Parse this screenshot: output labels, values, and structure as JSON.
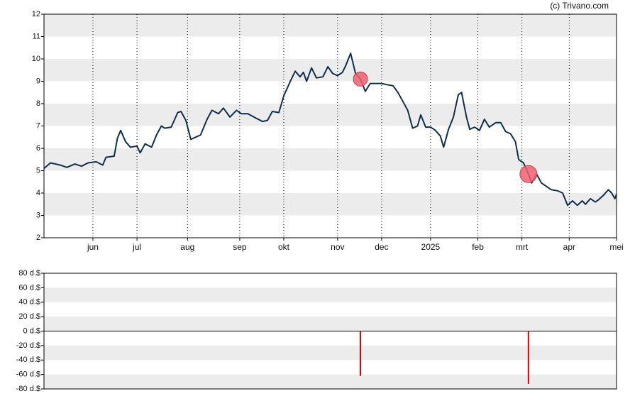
{
  "source": "(c) Trivano.com",
  "chart_data": [
    {
      "type": "line",
      "color": "#0f2f4f",
      "grid": true,
      "x": [
        0,
        4,
        10,
        14,
        19,
        23,
        27,
        32,
        36,
        38,
        43,
        45,
        47,
        50,
        53,
        57,
        59,
        62,
        66,
        69,
        72,
        74,
        78,
        82,
        84,
        87,
        90,
        93,
        96,
        100,
        103,
        107,
        110,
        114,
        118,
        121,
        125,
        130,
        134,
        137,
        140,
        144,
        147,
        151,
        154,
        157,
        159,
        161,
        164,
        167,
        171,
        174,
        177,
        180,
        183,
        185,
        188,
        191,
        194,
        197,
        200,
        204,
        207,
        210,
        214,
        217,
        220,
        223,
        226,
        229,
        231,
        234,
        237,
        240,
        243,
        245,
        248,
        251,
        254,
        256,
        259,
        261,
        264,
        267,
        270,
        273,
        277,
        280,
        283,
        286,
        289,
        291,
        294,
        297,
        299,
        302,
        305,
        308,
        311,
        315,
        318,
        321,
        324,
        327,
        330,
        332,
        335,
        338,
        340,
        343,
        346,
        348,
        350,
        351
      ],
      "values": [
        5.1,
        5.35,
        5.25,
        5.15,
        5.3,
        5.2,
        5.35,
        5.4,
        5.25,
        5.6,
        5.65,
        6.45,
        6.8,
        6.3,
        6.05,
        6.1,
        5.8,
        6.2,
        6.05,
        6.6,
        7.0,
        6.9,
        6.95,
        7.6,
        7.65,
        7.25,
        6.4,
        6.5,
        6.6,
        7.3,
        7.7,
        7.55,
        7.8,
        7.4,
        7.7,
        7.55,
        7.55,
        7.35,
        7.2,
        7.25,
        7.65,
        7.6,
        8.35,
        9.0,
        9.45,
        9.2,
        9.4,
        9.0,
        9.6,
        9.15,
        9.2,
        9.65,
        9.35,
        9.25,
        9.4,
        9.7,
        10.25,
        9.35,
        9.1,
        8.55,
        8.9,
        8.9,
        8.9,
        8.85,
        8.8,
        8.5,
        8.1,
        7.7,
        6.9,
        7.0,
        7.5,
        6.95,
        6.95,
        6.8,
        6.55,
        6.05,
        6.85,
        7.4,
        8.4,
        8.5,
        7.4,
        6.85,
        6.95,
        6.8,
        7.3,
        6.95,
        7.15,
        7.15,
        6.75,
        6.65,
        6.3,
        5.5,
        5.35,
        4.85,
        4.45,
        4.85,
        4.45,
        4.3,
        4.15,
        4.1,
        4.0,
        3.45,
        3.65,
        3.45,
        3.65,
        3.5,
        3.75,
        3.6,
        3.7,
        3.9,
        4.15,
        4.0,
        3.75,
        3.95
      ],
      "markers": {
        "color": "#f06070",
        "x": [
          194,
          297
        ],
        "values": [
          9.1,
          4.85
        ]
      },
      "xlim": [
        0,
        351
      ],
      "xticks": [
        {
          "value": 30,
          "label": "jun"
        },
        {
          "value": 57,
          "label": "jul"
        },
        {
          "value": 88,
          "label": "aug"
        },
        {
          "value": 120,
          "label": "sep"
        },
        {
          "value": 147,
          "label": "okt"
        },
        {
          "value": 180,
          "label": "nov"
        },
        {
          "value": 207,
          "label": "dec"
        },
        {
          "value": 237,
          "label": "2025"
        },
        {
          "value": 266,
          "label": "feb"
        },
        {
          "value": 293,
          "label": "mrt"
        },
        {
          "value": 322,
          "label": "apr"
        },
        {
          "value": 351,
          "label": "mei"
        }
      ],
      "ylim": [
        2,
        12
      ],
      "yticks": [
        2,
        3,
        4,
        5,
        6,
        7,
        8,
        9,
        10,
        11,
        12
      ]
    },
    {
      "type": "bar",
      "color": "#e00000",
      "x": [
        194,
        297
      ],
      "values": [
        -62,
        -73
      ],
      "xlim": [
        0,
        351
      ],
      "ylim": [
        -80,
        80
      ],
      "yticks": [
        {
          "value": 80,
          "label": "80 d.$"
        },
        {
          "value": 60,
          "label": "60 d.$"
        },
        {
          "value": 40,
          "label": "40 d.$"
        },
        {
          "value": 20,
          "label": "20 d.$"
        },
        {
          "value": 0,
          "label": "0 d.$"
        },
        {
          "value": -20,
          "label": "-20 d.$"
        },
        {
          "value": -40,
          "label": "-40 d.$"
        },
        {
          "value": -60,
          "label": "-60 d.$"
        },
        {
          "value": -80,
          "label": "-80 d.$"
        }
      ]
    }
  ]
}
